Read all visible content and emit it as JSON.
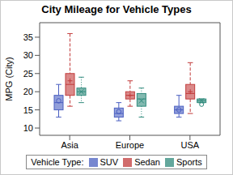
{
  "chart_data": {
    "type": "box",
    "title": "City Mileage for Vehicle Types",
    "y_label": "MPG (City)",
    "legend_title": "Vehicle Type:",
    "categories": [
      "Asia",
      "Europe",
      "USA"
    ],
    "ylim": [
      8,
      39
    ],
    "yticks": [
      10,
      15,
      20,
      25,
      30,
      35
    ],
    "series": [
      {
        "name": "SUV",
        "color": "#4a5fc1",
        "marker": "circle",
        "line_style": "solid",
        "values": [
          {
            "min": 13,
            "q1": 15,
            "median": 17,
            "q3": 19,
            "max": 22,
            "mean": 17.5
          },
          {
            "min": 12,
            "q1": 13,
            "median": 14,
            "q3": 15.5,
            "max": 17,
            "mean": 14.5
          },
          {
            "min": 13,
            "q1": 14,
            "median": 15,
            "q3": 16,
            "max": 19,
            "mean": 15
          }
        ]
      },
      {
        "name": "Sedan",
        "color": "#c23b3b",
        "marker": "plus",
        "line_style": "dashed",
        "values": [
          {
            "min": 16,
            "q1": 19,
            "median": 22,
            "q3": 25,
            "max": 36,
            "mean": 23
          },
          {
            "min": 16,
            "q1": 18,
            "median": 19,
            "q3": 20,
            "max": 23,
            "mean": 19
          },
          {
            "min": 14,
            "q1": 18,
            "median": 19.5,
            "q3": 22,
            "max": 28,
            "mean": 20
          }
        ]
      },
      {
        "name": "Sports",
        "color": "#2f8a7c",
        "marker": "x",
        "line_style": "dotted",
        "values": [
          {
            "min": 17,
            "q1": 19,
            "median": 20,
            "q3": 21,
            "max": 24,
            "mean": 20
          },
          {
            "min": 13,
            "q1": 16,
            "median": 18,
            "q3": 19.5,
            "max": 21,
            "mean": 17.5
          },
          {
            "min": 17,
            "q1": 17,
            "median": 17.5,
            "q3": 18,
            "max": 18,
            "mean": 17.5,
            "outliers": [
              16.5
            ]
          }
        ]
      }
    ]
  }
}
